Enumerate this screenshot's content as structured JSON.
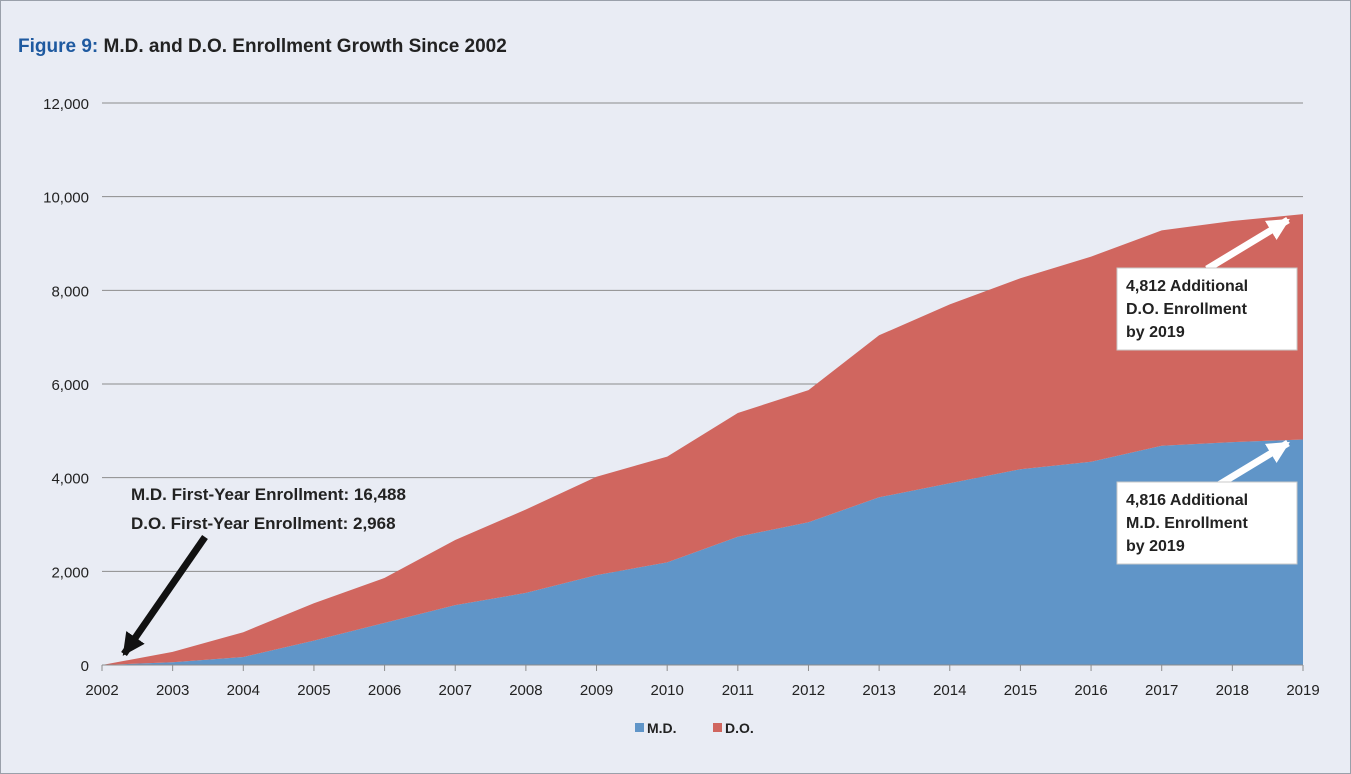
{
  "figure": {
    "number_label": "Figure 9:",
    "title": "M.D. and D.O. Enrollment Growth Since 2002"
  },
  "chart_data": {
    "type": "area",
    "stacked": true,
    "x": [
      2002,
      2003,
      2004,
      2005,
      2006,
      2007,
      2008,
      2009,
      2010,
      2011,
      2012,
      2013,
      2014,
      2015,
      2016,
      2017,
      2018,
      2019
    ],
    "ylim": [
      0,
      12000
    ],
    "yticks": [
      0,
      2000,
      4000,
      6000,
      8000,
      10000,
      12000
    ],
    "ytick_labels": [
      "0",
      "2,000",
      "4,000",
      "6,000",
      "8,000",
      "10,000",
      "12,000"
    ],
    "grid": true,
    "legend_position": "bottom",
    "series": [
      {
        "name": "M.D.",
        "color": "#6095c8",
        "values": [
          0,
          60,
          170,
          520,
          900,
          1280,
          1540,
          1920,
          2190,
          2740,
          3050,
          3580,
          3880,
          4180,
          4340,
          4680,
          4760,
          4816
        ]
      },
      {
        "name": "D.O.",
        "color": "#d0665f",
        "values": [
          0,
          220,
          530,
          800,
          960,
          1390,
          1780,
          2100,
          2260,
          2640,
          2820,
          3460,
          3820,
          4080,
          4380,
          4600,
          4720,
          4812
        ]
      }
    ],
    "annotations": {
      "first_year": [
        "M.D. First-Year Enrollment: 16,488",
        "D.O. First-Year Enrollment: 2,968"
      ],
      "do_box": [
        "4,812 Additional",
        "D.O. Enrollment",
        "by 2019"
      ],
      "md_box": [
        "4,816 Additional",
        "M.D. Enrollment",
        "by 2019"
      ]
    }
  }
}
